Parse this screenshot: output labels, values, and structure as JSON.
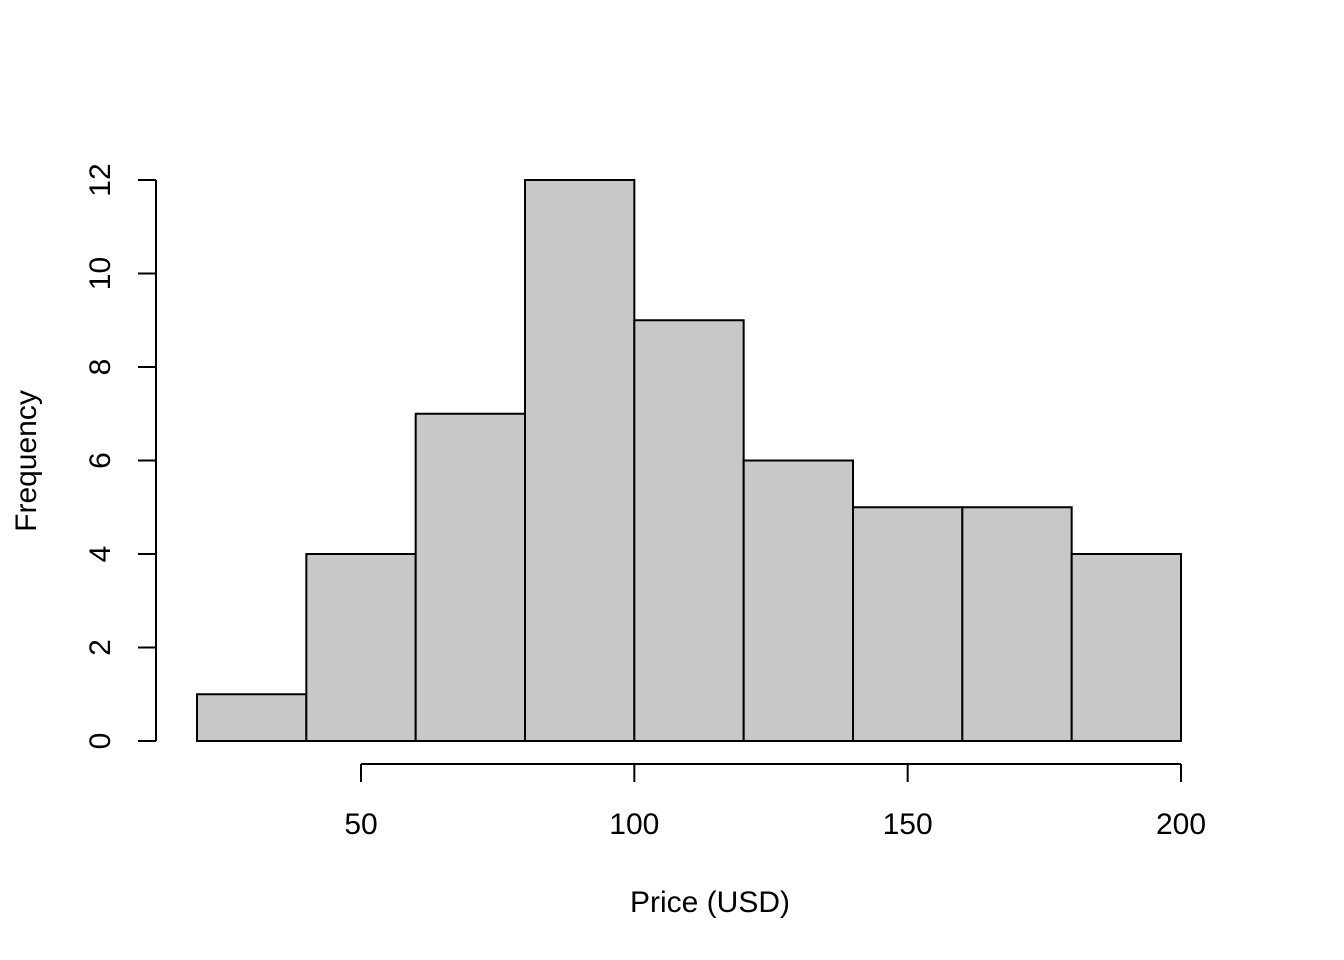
{
  "chart_data": {
    "type": "bar",
    "title": "",
    "xlabel": "Price (USD)",
    "ylabel": "Frequency",
    "bins": [
      {
        "start": 20,
        "end": 40,
        "count": 1
      },
      {
        "start": 40,
        "end": 60,
        "count": 4
      },
      {
        "start": 60,
        "end": 80,
        "count": 7
      },
      {
        "start": 80,
        "end": 100,
        "count": 12
      },
      {
        "start": 100,
        "end": 120,
        "count": 9
      },
      {
        "start": 120,
        "end": 140,
        "count": 6
      },
      {
        "start": 140,
        "end": 160,
        "count": 5
      },
      {
        "start": 160,
        "end": 180,
        "count": 5
      },
      {
        "start": 180,
        "end": 200,
        "count": 4
      }
    ],
    "xlim": [
      12.5,
      207.5
    ],
    "ylim": [
      0,
      12
    ],
    "x_ticks": [
      50,
      100,
      150,
      200
    ],
    "y_ticks": [
      0,
      2,
      4,
      6,
      8,
      10,
      12
    ],
    "grid": false,
    "bar_color": "#c8c8c8",
    "border_color": "#000000"
  }
}
